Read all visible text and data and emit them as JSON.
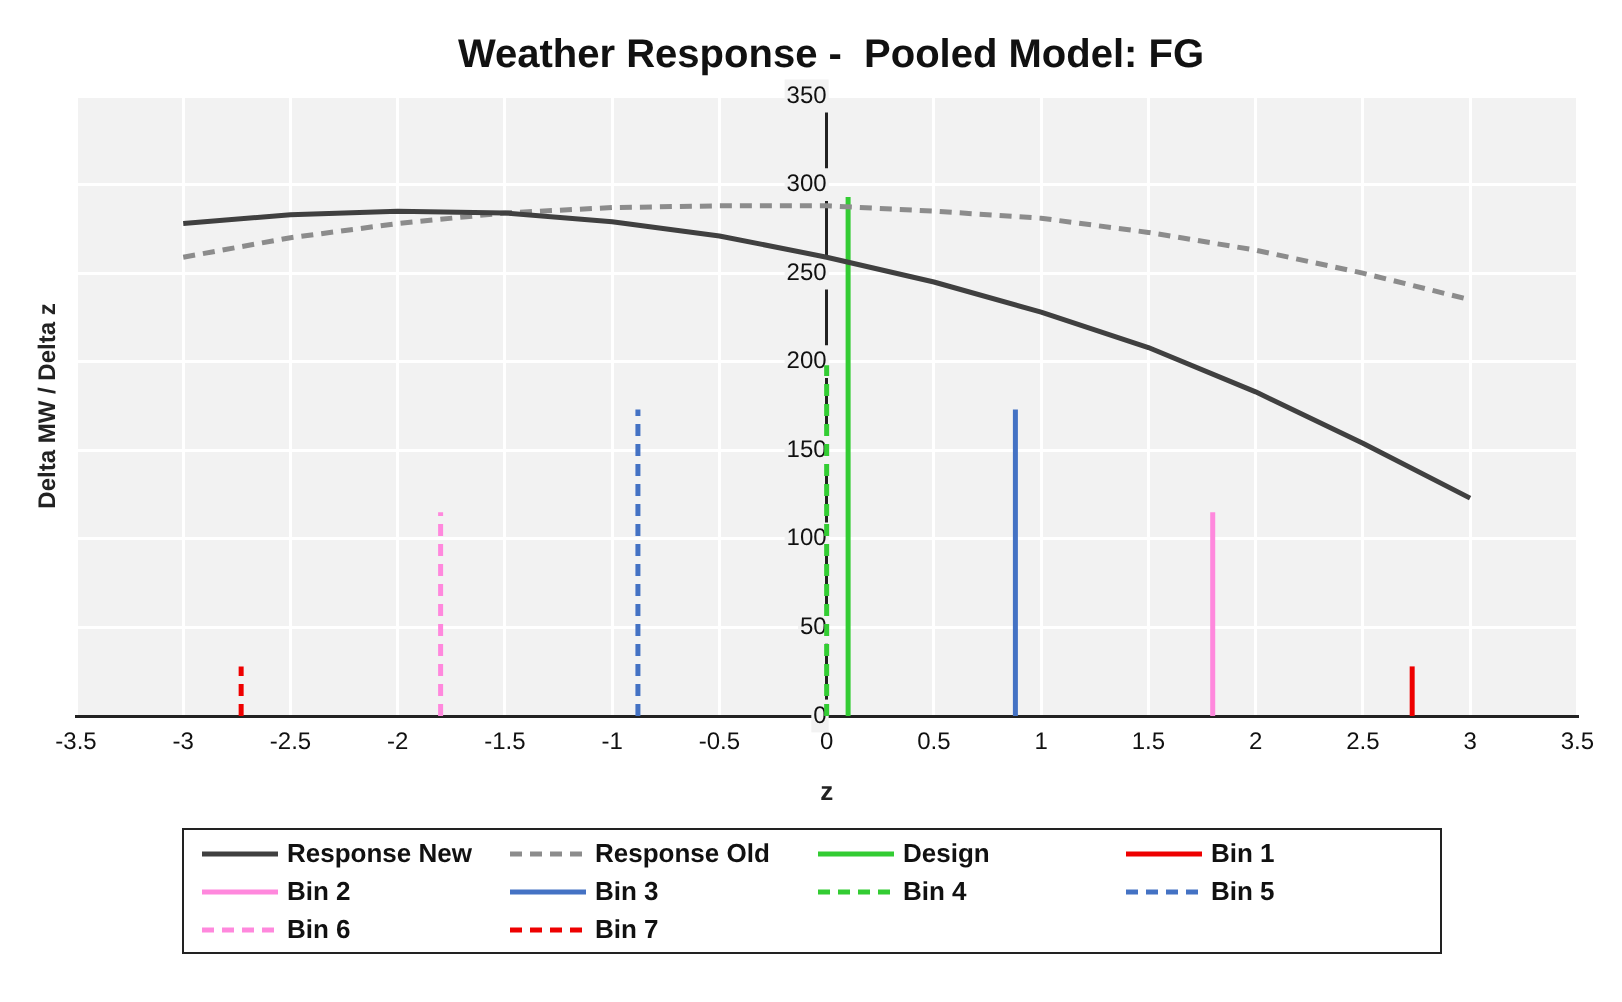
{
  "chart_data": {
    "type": "line",
    "title": "Weather Response -  Pooled Model: FG",
    "xlabel": "z",
    "ylabel": "Delta MW / Delta z",
    "xlim": [
      -3.5,
      3.5
    ],
    "xticks": [
      -3.5,
      -3,
      -2.5,
      -2,
      -1.5,
      -1,
      -0.5,
      0,
      0.5,
      1,
      1.5,
      2,
      2.5,
      3,
      3.5
    ],
    "ylim": [
      0,
      350
    ],
    "yticks": [
      0,
      50,
      100,
      150,
      200,
      250,
      300,
      350
    ],
    "grid": true,
    "legend": "bottom",
    "marker": "none",
    "series": [
      {
        "name": "Response New",
        "color": "#404040",
        "line_style": "solid",
        "x": [
          -3,
          -2.5,
          -2,
          -1.5,
          -1,
          -0.5,
          0,
          0.5,
          1,
          1.5,
          2,
          2.5,
          3
        ],
        "values": [
          278,
          283,
          285,
          284,
          279,
          271,
          259,
          245,
          228,
          208,
          183,
          154,
          123
        ]
      },
      {
        "name": "Response Old",
        "color": "#8c8c8c",
        "line_style": "dashed",
        "x": [
          -3,
          -2.5,
          -2,
          -1.5,
          -1,
          -0.5,
          0,
          0.5,
          1,
          1.5,
          2,
          2.5,
          3
        ],
        "values": [
          259,
          270,
          278,
          284,
          287,
          288,
          288,
          285,
          281,
          273,
          263,
          250,
          235
        ]
      },
      {
        "name": "Design",
        "color": "#33cc33",
        "line_style": "solid",
        "x": [
          0.1,
          0.1
        ],
        "values": [
          0,
          293
        ]
      },
      {
        "name": "Bin 1",
        "color": "#ee0000",
        "line_style": "solid",
        "x": [
          2.73,
          2.73
        ],
        "values": [
          0,
          28
        ]
      },
      {
        "name": "Bin 2",
        "color": "#ff88dd",
        "line_style": "solid",
        "x": [
          1.8,
          1.8
        ],
        "values": [
          0,
          115
        ]
      },
      {
        "name": "Bin 3",
        "color": "#4472c4",
        "line_style": "solid",
        "x": [
          0.88,
          0.88
        ],
        "values": [
          0,
          173
        ]
      },
      {
        "name": "Bin 4",
        "color": "#33cc33",
        "line_style": "dashed",
        "x": [
          0,
          0
        ],
        "values": [
          0,
          198
        ]
      },
      {
        "name": "Bin 5",
        "color": "#4472c4",
        "line_style": "dashed",
        "x": [
          -0.88,
          -0.88
        ],
        "values": [
          0,
          173
        ]
      },
      {
        "name": "Bin 6",
        "color": "#ff88dd",
        "line_style": "dashed",
        "x": [
          -1.8,
          -1.8
        ],
        "values": [
          0,
          115
        ]
      },
      {
        "name": "Bin 7",
        "color": "#ee0000",
        "line_style": "dashed",
        "x": [
          -2.73,
          -2.73
        ],
        "values": [
          0,
          28
        ]
      }
    ]
  }
}
